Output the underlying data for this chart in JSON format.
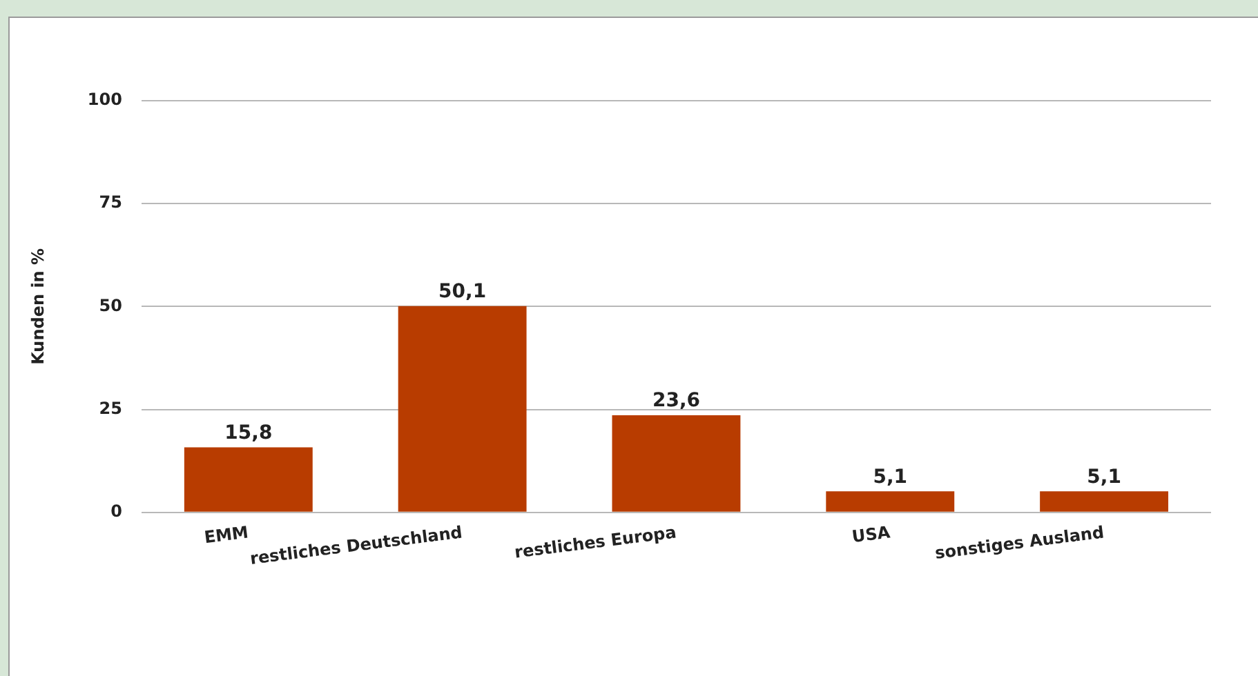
{
  "chart_data": {
    "type": "bar",
    "ylabel": "Kunden in %",
    "categories": [
      "EMM",
      "restliches Deutschland",
      "restliches Europa",
      "USA",
      "sonstiges Ausland"
    ],
    "values": [
      15.8,
      50.1,
      23.6,
      5.1,
      5.1
    ],
    "value_labels": [
      "15,8",
      "50,1",
      "23,6",
      "5,1",
      "5,1"
    ],
    "color": "#b83c00",
    "ylim": [
      0,
      100
    ],
    "yticks": [
      0,
      25,
      50,
      75,
      100
    ],
    "grid": "y",
    "legend": false
  }
}
